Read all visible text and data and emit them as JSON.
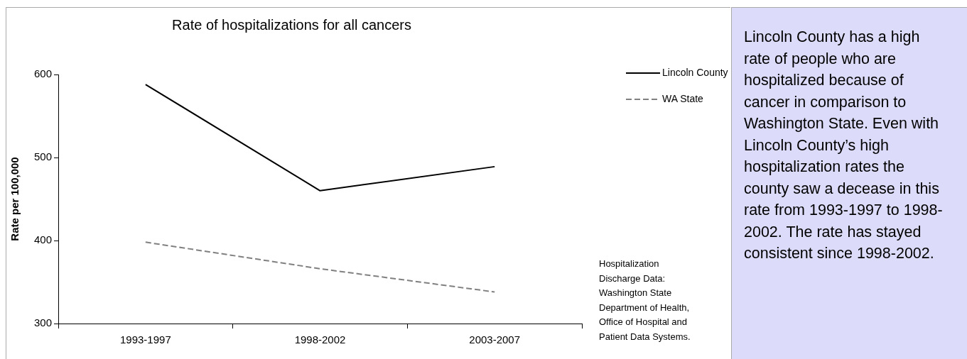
{
  "chart_data": {
    "type": "line",
    "title": "Rate of hospitalizations for all cancers",
    "ylabel": "Rate per 100,000",
    "categories": [
      "1993-1997",
      "1998-2002",
      "2003-2007"
    ],
    "series": [
      {
        "name": "Lincoln County",
        "color": "#000000",
        "line_style": "solid",
        "values": [
          588,
          460,
          489
        ]
      },
      {
        "name": "WA State",
        "color": "#808080",
        "line_style": "dashed",
        "values": [
          398,
          366,
          338
        ]
      }
    ],
    "ylim": [
      300,
      600
    ],
    "yticks": [
      300,
      400,
      500,
      600
    ],
    "grid": false,
    "legend": "top right",
    "marker": "none",
    "annotations": [
      "Hospitalization Discharge Data: Washington State Department of Health, Office of Hospital and Patient Data Systems.",
      "Lincoln County has a high rate of people who are hospitalized because of cancer in comparison to Washington State.  Even with Lincoln County’s high hospitalization rates the county saw a decease in this rate from 1993-1997 to 1998-2002.  The rate has stayed consistent since 1998-2002."
    ]
  }
}
